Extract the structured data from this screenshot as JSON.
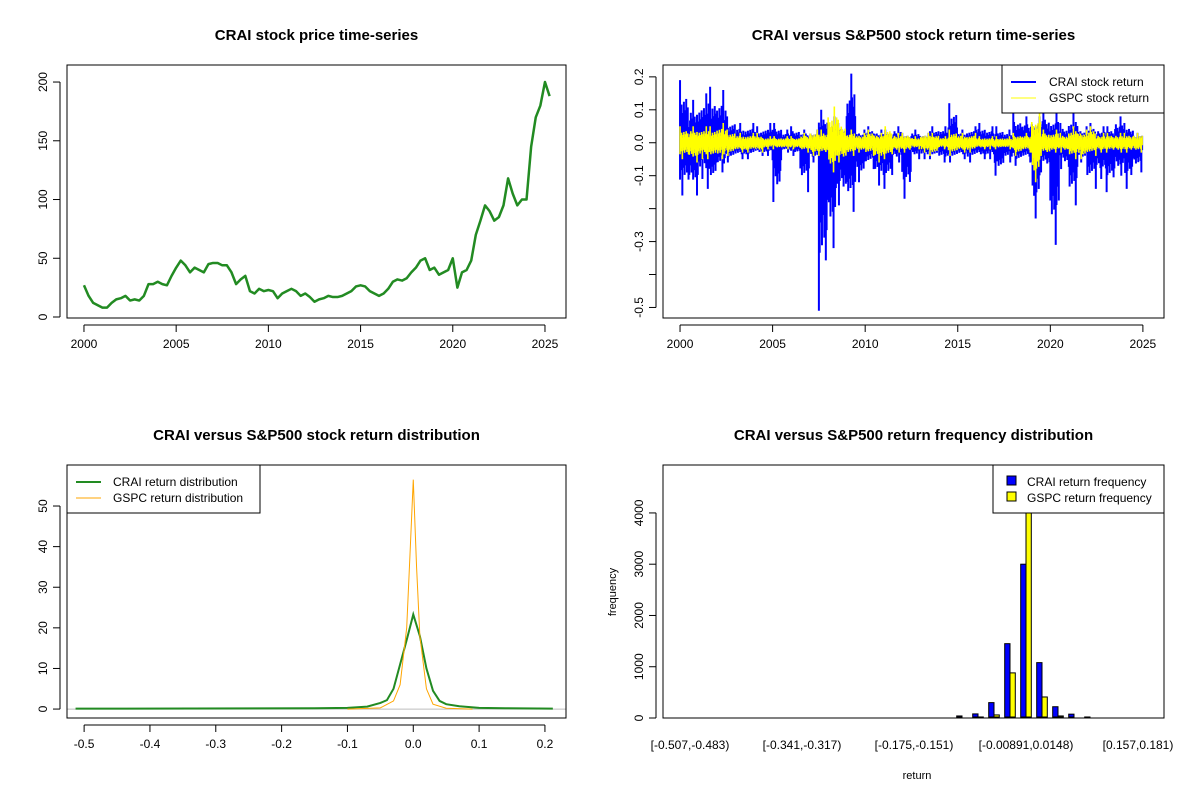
{
  "colors": {
    "crai_price": "#228B22",
    "crai_return": "#0000FF",
    "gspc_return": "#FFFF00",
    "crai_density": "#228B22",
    "gspc_density": "#FFA500",
    "zero_line": "#BEBEBE"
  },
  "chart_data": [
    {
      "type": "line",
      "title": "CRAI stock price time-series",
      "xlabel": "",
      "ylabel": "",
      "xlim": [
        1999.08,
        2026.14
      ],
      "ylim": [
        -0.85,
        214.5
      ],
      "xticks": [
        {
          "v": 2000,
          "label": "2000"
        },
        {
          "v": 2005,
          "label": "2005"
        },
        {
          "v": 2010,
          "label": "2010"
        },
        {
          "v": 2015,
          "label": "2015"
        },
        {
          "v": 2020,
          "label": "2020"
        },
        {
          "v": 2025,
          "label": "2025"
        }
      ],
      "yticks": [
        {
          "v": 0,
          "label": "0"
        },
        {
          "v": 50,
          "label": "50"
        },
        {
          "v": 100,
          "label": "100"
        },
        {
          "v": 150,
          "label": "150"
        },
        {
          "v": 200,
          "label": "200"
        }
      ],
      "series": [
        {
          "name": "CRAI price",
          "x_start": 2000,
          "x_step": 0.25,
          "values": [
            27,
            18,
            12,
            10,
            8,
            8,
            12,
            15,
            16,
            18,
            14,
            15,
            14,
            18,
            28,
            28,
            30,
            28,
            27,
            35,
            42,
            48,
            44,
            38,
            42,
            40,
            38,
            45,
            46,
            46,
            44,
            44,
            38,
            28,
            32,
            35,
            22,
            20,
            24,
            22,
            23,
            22,
            16,
            20,
            22,
            24,
            22,
            18,
            20,
            17,
            13,
            15,
            16,
            18,
            17,
            17,
            18,
            20,
            22,
            26,
            27,
            26,
            22,
            20,
            18,
            20,
            24,
            30,
            32,
            31,
            33,
            38,
            42,
            48,
            50,
            40,
            42,
            36,
            38,
            40,
            50,
            25,
            38,
            40,
            48,
            70,
            82,
            95,
            90,
            82,
            85,
            95,
            118,
            105,
            95,
            100,
            100,
            145,
            170,
            180,
            200,
            188
          ]
        }
      ]
    },
    {
      "type": "line",
      "title": "CRAI versus S&P500 stock return time-series",
      "xlabel": "",
      "ylabel": "",
      "xlim": [
        1999.08,
        2026.14
      ],
      "ylim": [
        -0.532,
        0.236
      ],
      "xticks": [
        {
          "v": 2000,
          "label": "2000"
        },
        {
          "v": 2005,
          "label": "2005"
        },
        {
          "v": 2010,
          "label": "2010"
        },
        {
          "v": 2015,
          "label": "2015"
        },
        {
          "v": 2020,
          "label": "2020"
        },
        {
          "v": 2025,
          "label": "2025"
        }
      ],
      "yticks": [
        {
          "v": 0.2,
          "label": "0.2"
        },
        {
          "v": 0.1,
          "label": "0.1"
        },
        {
          "v": 0,
          "label": "0.0"
        },
        {
          "v": -0.1,
          "label": "-0.1"
        },
        {
          "v": -0.2,
          "label": ""
        },
        {
          "v": -0.3,
          "label": "-0.3"
        },
        {
          "v": -0.4,
          "label": ""
        },
        {
          "v": -0.5,
          "label": "-0.5"
        }
      ],
      "legend": {
        "position": "top-right",
        "entries": [
          "CRAI stock return",
          "GSPC stock return"
        ]
      },
      "period_years": 0.5,
      "x_start": 2000,
      "series": [
        {
          "name": "CRAI stock return",
          "max": [
            0.19,
            0.13,
            0.15,
            0.17,
            0.16,
            0.08,
            0.06,
            0.06,
            0.05,
            0.06,
            0.06,
            0.04,
            0.05,
            0.04,
            0.04,
            0.1,
            0.08,
            0.06,
            0.21,
            0.04,
            0.05,
            0.04,
            0.04,
            0.05,
            0.03,
            0.04,
            0.03,
            0.05,
            0.05,
            0.12,
            0.04,
            0.05,
            0.06,
            0.05,
            0.05,
            0.04,
            0.09,
            0.08,
            0.08,
            0.1,
            0.09,
            0.06,
            0.09,
            0.05,
            0.06,
            0.05,
            0.05,
            0.08,
            0.06,
            0.03
          ],
          "min": [
            -0.16,
            -0.16,
            -0.11,
            -0.14,
            -0.09,
            -0.06,
            -0.05,
            -0.05,
            -0.04,
            -0.04,
            -0.18,
            -0.03,
            -0.04,
            -0.15,
            -0.06,
            -0.51,
            -0.32,
            -0.19,
            -0.21,
            -0.12,
            -0.08,
            -0.13,
            -0.14,
            -0.06,
            -0.17,
            -0.05,
            -0.05,
            -0.05,
            -0.06,
            -0.06,
            -0.05,
            -0.06,
            -0.05,
            -0.05,
            -0.1,
            -0.06,
            -0.07,
            -0.06,
            -0.23,
            -0.09,
            -0.31,
            -0.08,
            -0.19,
            -0.06,
            -0.14,
            -0.11,
            -0.15,
            -0.1,
            -0.14,
            -0.09
          ]
        },
        {
          "name": "GSPC stock return",
          "max": [
            0.05,
            0.05,
            0.05,
            0.05,
            0.06,
            0.04,
            0.03,
            0.03,
            0.03,
            0.02,
            0.02,
            0.02,
            0.02,
            0.03,
            0.04,
            0.04,
            0.11,
            0.07,
            0.04,
            0.03,
            0.04,
            0.03,
            0.05,
            0.03,
            0.03,
            0.02,
            0.03,
            0.03,
            0.02,
            0.04,
            0.03,
            0.03,
            0.02,
            0.02,
            0.02,
            0.02,
            0.03,
            0.03,
            0.09,
            0.04,
            0.04,
            0.03,
            0.05,
            0.04,
            0.05,
            0.03,
            0.03,
            0.03,
            0.03,
            0.03
          ],
          "min": [
            -0.05,
            -0.06,
            -0.05,
            -0.05,
            -0.05,
            -0.04,
            -0.03,
            -0.03,
            -0.03,
            -0.02,
            -0.02,
            -0.02,
            -0.02,
            -0.03,
            -0.04,
            -0.04,
            -0.09,
            -0.06,
            -0.04,
            -0.03,
            -0.04,
            -0.06,
            -0.05,
            -0.03,
            -0.03,
            -0.02,
            -0.03,
            -0.04,
            -0.02,
            -0.04,
            -0.03,
            -0.03,
            -0.02,
            -0.02,
            -0.02,
            -0.02,
            -0.04,
            -0.03,
            -0.12,
            -0.04,
            -0.03,
            -0.03,
            -0.05,
            -0.05,
            -0.04,
            -0.03,
            -0.03,
            -0.03,
            -0.03,
            -0.03
          ]
        }
      ]
    },
    {
      "type": "line",
      "title": "CRAI versus S&P500 stock return distribution",
      "xlabel": "",
      "ylabel": "",
      "xlim": [
        -0.526,
        0.232
      ],
      "ylim": [
        -2.2,
        60.1
      ],
      "xticks": [
        {
          "v": -0.5,
          "label": "-0.5"
        },
        {
          "v": -0.4,
          "label": "-0.4"
        },
        {
          "v": -0.3,
          "label": "-0.3"
        },
        {
          "v": -0.2,
          "label": "-0.2"
        },
        {
          "v": -0.1,
          "label": "-0.1"
        },
        {
          "v": 0,
          "label": "0.0"
        },
        {
          "v": 0.1,
          "label": "0.1"
        },
        {
          "v": 0.2,
          "label": "0.2"
        }
      ],
      "yticks": [
        {
          "v": 0,
          "label": "0"
        },
        {
          "v": 10,
          "label": "10"
        },
        {
          "v": 20,
          "label": "20"
        },
        {
          "v": 30,
          "label": "30"
        },
        {
          "v": 40,
          "label": "40"
        },
        {
          "v": 50,
          "label": "50"
        }
      ],
      "legend": {
        "position": "top-left",
        "entries": [
          "CRAI return distribution",
          "GSPC return distribution"
        ]
      },
      "series": [
        {
          "name": "CRAI return distribution",
          "x": [
            -0.513,
            -0.15,
            -0.1,
            -0.07,
            -0.05,
            -0.04,
            -0.03,
            -0.02,
            -0.01,
            0,
            0.01,
            0.02,
            0.03,
            0.04,
            0.05,
            0.07,
            0.1,
            0.14,
            0.212
          ],
          "y": [
            0.1,
            0.2,
            0.3,
            0.6,
            1.5,
            2.2,
            5,
            11,
            17,
            23.3,
            18,
            10,
            4.5,
            2,
            1.2,
            0.7,
            0.3,
            0.2,
            0.1
          ]
        },
        {
          "name": "GSPC return distribution",
          "x": [
            -0.1,
            -0.05,
            -0.03,
            -0.02,
            -0.01,
            -0.005,
            0,
            0.005,
            0.01,
            0.02,
            0.03,
            0.05,
            0.09
          ],
          "y": [
            0,
            0.3,
            2,
            6,
            20,
            38,
            56.5,
            35,
            18,
            5,
            1.2,
            0.2,
            0
          ]
        }
      ]
    },
    {
      "type": "bar",
      "title": "CRAI versus S&P500 return frequency distribution",
      "xlabel": "return",
      "ylabel": "frequency",
      "ylim": [
        0,
        4935
      ],
      "yticks": [
        {
          "v": 0,
          "label": "0"
        },
        {
          "v": 1000,
          "label": "1000"
        },
        {
          "v": 2000,
          "label": "2000"
        },
        {
          "v": 3000,
          "label": "3000"
        },
        {
          "v": 4000,
          "label": "4000"
        }
      ],
      "category_labels": [
        {
          "index": 0,
          "label": "[-0.507,-0.483)"
        },
        {
          "index": 7,
          "label": "[-0.341,-0.317)"
        },
        {
          "index": 14,
          "label": "[-0.175,-0.151)"
        },
        {
          "index": 21,
          "label": "[-0.00891,0.0148)"
        },
        {
          "index": 28,
          "label": "[0.157,0.181)"
        }
      ],
      "legend": {
        "position": "top-right",
        "entries": [
          "CRAI return frequency",
          "GSPC return frequency"
        ]
      },
      "series": [
        {
          "name": "CRAI return frequency",
          "values": [
            1,
            0,
            0,
            0,
            0,
            0,
            0,
            0,
            0,
            0,
            0,
            0,
            1,
            2,
            10,
            12,
            15,
            40,
            80,
            300,
            1450,
            3000,
            1080,
            220,
            75,
            20,
            15,
            12,
            3,
            2
          ]
        },
        {
          "name": "GSPC return frequency",
          "values": [
            0,
            0,
            0,
            0,
            0,
            0,
            0,
            0,
            0,
            0,
            0,
            0,
            0,
            0,
            1,
            2,
            3,
            5,
            20,
            60,
            880,
            4745,
            410,
            40,
            5,
            2,
            1,
            0,
            0,
            0
          ]
        }
      ]
    }
  ]
}
